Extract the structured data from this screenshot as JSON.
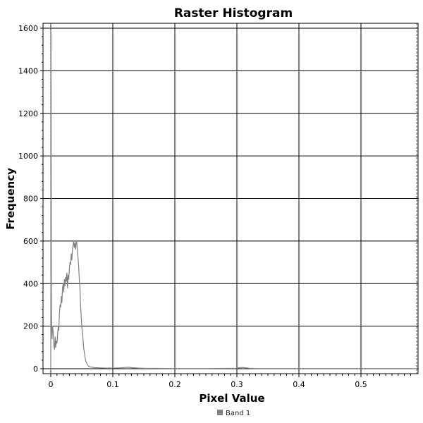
{
  "chart_data": {
    "type": "line",
    "title": "Raster Histogram",
    "xlabel": "Pixel Value",
    "ylabel": "Frequency",
    "xlim": [
      0,
      0.59
    ],
    "ylim": [
      0,
      1600
    ],
    "x_ticks": [
      0,
      0.1,
      0.2,
      0.3,
      0.4,
      0.5
    ],
    "x_tick_labels": [
      "0",
      "0.1",
      "0.2",
      "0.3",
      "0.4",
      "0.5"
    ],
    "y_ticks": [
      0,
      200,
      400,
      600,
      800,
      1000,
      1200,
      1400,
      1600
    ],
    "y_tick_labels": [
      "0",
      "200",
      "400",
      "600",
      "800",
      "1000",
      "1200",
      "1400",
      "1600"
    ],
    "grid": true,
    "legend": {
      "position": "bottom-center",
      "entries": [
        {
          "name": "Band 1",
          "color": "#808080"
        }
      ]
    },
    "series": [
      {
        "name": "Band 1",
        "color": "#808080",
        "x": [
          0,
          0.0005,
          0.001,
          0.0015,
          0.002,
          0.003,
          0.004,
          0.005,
          0.006,
          0.007,
          0.008,
          0.009,
          0.01,
          0.011,
          0.012,
          0.013,
          0.014,
          0.015,
          0.016,
          0.017,
          0.018,
          0.019,
          0.02,
          0.021,
          0.022,
          0.023,
          0.024,
          0.025,
          0.026,
          0.027,
          0.028,
          0.029,
          0.03,
          0.031,
          0.032,
          0.033,
          0.034,
          0.035,
          0.036,
          0.037,
          0.038,
          0.039,
          0.04,
          0.041,
          0.042,
          0.043,
          0.044,
          0.045,
          0.046,
          0.047,
          0.048,
          0.049,
          0.05,
          0.051,
          0.052,
          0.053,
          0.054,
          0.055,
          0.056,
          0.058,
          0.06,
          0.062,
          0.065,
          0.07,
          0.08,
          0.09,
          0.1,
          0.11,
          0.12,
          0.125,
          0.13,
          0.14,
          0.15,
          0.2,
          0.25,
          0.3,
          0.305,
          0.31,
          0.315,
          0.32,
          0.33,
          0.4,
          0.5,
          0.58,
          0.59
        ],
        "values": [
          0,
          1580,
          300,
          180,
          140,
          200,
          170,
          110,
          90,
          150,
          100,
          130,
          120,
          160,
          200,
          180,
          260,
          300,
          290,
          340,
          310,
          380,
          400,
          360,
          420,
          390,
          430,
          410,
          450,
          380,
          440,
          420,
          470,
          500,
          490,
          540,
          510,
          560,
          580,
          600,
          570,
          590,
          560,
          600,
          590,
          550,
          520,
          480,
          420,
          380,
          300,
          250,
          200,
          170,
          140,
          100,
          80,
          60,
          40,
          25,
          15,
          10,
          8,
          5,
          4,
          3,
          3,
          4,
          6,
          7,
          5,
          3,
          2,
          1,
          1,
          2,
          5,
          6,
          4,
          2,
          1,
          1,
          1,
          1,
          0
        ]
      }
    ]
  }
}
